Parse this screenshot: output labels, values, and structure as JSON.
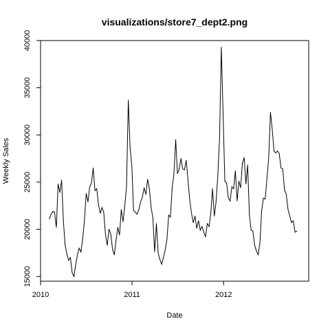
{
  "chart_data": {
    "type": "line",
    "title": "visualizations/store7_dept2.png",
    "xlabel": "Date",
    "ylabel": "Weekly Sales",
    "xlim": [
      2010.0,
      2012.93
    ],
    "ylim": [
      14500,
      40000
    ],
    "x_ticks": [
      2010,
      2011,
      2012
    ],
    "y_ticks": [
      15000,
      20000,
      25000,
      30000,
      35000,
      40000
    ],
    "grid": false,
    "color": "#000000",
    "series": [
      {
        "x": [
          2010.0959,
          2010.1151,
          2010.1342,
          2010.1534,
          2010.1726,
          2010.1918,
          2010.211,
          2010.2301,
          2010.2493,
          2010.2685,
          2010.2877,
          2010.3068,
          2010.326,
          2010.3452,
          2010.3644,
          2010.3836,
          2010.4027,
          2010.4219,
          2010.4411,
          2010.4603,
          2010.4795,
          2010.4986,
          2010.5178,
          2010.537,
          2010.5562,
          2010.5753,
          2010.5945,
          2010.6137,
          2010.6329,
          2010.6521,
          2010.6712,
          2010.6904,
          2010.7096,
          2010.7288,
          2010.7479,
          2010.7671,
          2010.7863,
          2010.8055,
          2010.8247,
          2010.8438,
          2010.863,
          2010.8822,
          2010.9014,
          2010.9205,
          2010.9397,
          2010.9589,
          2010.9781,
          2010.9973,
          2011.0164,
          2011.0356,
          2011.0548,
          2011.074,
          2011.0932,
          2011.1123,
          2011.1315,
          2011.1507,
          2011.1699,
          2011.189,
          2011.2082,
          2011.2274,
          2011.2466,
          2011.2658,
          2011.2849,
          2011.3041,
          2011.3233,
          2011.3425,
          2011.3616,
          2011.3808,
          2011.4,
          2011.4192,
          2011.4384,
          2011.4575,
          2011.4767,
          2011.4959,
          2011.5151,
          2011.5342,
          2011.5534,
          2011.5726,
          2011.5918,
          2011.611,
          2011.6301,
          2011.6493,
          2011.6685,
          2011.6877,
          2011.7068,
          2011.726,
          2011.7452,
          2011.7644,
          2011.7836,
          2011.8027,
          2011.8219,
          2011.8411,
          2011.8603,
          2011.8795,
          2011.8986,
          2011.9178,
          2011.937,
          2011.9562,
          2011.9753,
          2011.9945,
          2012.0137,
          2012.0329,
          2012.0521,
          2012.0712,
          2012.0904,
          2012.1096,
          2012.1288,
          2012.1479,
          2012.1671,
          2012.1863,
          2012.2055,
          2012.2247,
          2012.2438,
          2012.263,
          2012.2822,
          2012.3014,
          2012.3205,
          2012.3397,
          2012.3589,
          2012.3781,
          2012.3973,
          2012.4164,
          2012.4356,
          2012.4548,
          2012.474,
          2012.4932,
          2012.5123,
          2012.5315,
          2012.5507,
          2012.5699,
          2012.589,
          2012.6082,
          2012.6274,
          2012.6466,
          2012.6658,
          2012.6849,
          2012.7041,
          2012.7233,
          2012.7425,
          2012.7616,
          2012.7808,
          2012.8
        ],
        "y": [
          21100,
          21600,
          21900,
          21800,
          20200,
          24800,
          23900,
          25200,
          20900,
          18300,
          17400,
          16700,
          17000,
          15400,
          15000,
          16200,
          17300,
          18000,
          17600,
          19000,
          20900,
          23800,
          22900,
          24500,
          24900,
          26500,
          24100,
          24300,
          22600,
          21700,
          22300,
          21800,
          19400,
          18300,
          20000,
          19500,
          17900,
          17300,
          18800,
          20200,
          19400,
          22100,
          20800,
          22500,
          24600,
          33700,
          28700,
          26700,
          22000,
          21800,
          21600,
          22100,
          22900,
          23400,
          24400,
          23700,
          25300,
          24300,
          22300,
          21200,
          17600,
          20600,
          17500,
          16800,
          16300,
          17000,
          17800,
          18900,
          21500,
          21300,
          24400,
          25900,
          29500,
          25900,
          26400,
          27500,
          26400,
          26300,
          27300,
          25200,
          23100,
          21700,
          20700,
          21400,
          20100,
          20900,
          19900,
          20300,
          19700,
          19200,
          20600,
          20300,
          21700,
          24300,
          21400,
          22900,
          25700,
          29700,
          39300,
          32300,
          25100,
          24900,
          23300,
          23000,
          24500,
          24300,
          26200,
          23000,
          25100,
          24400,
          27000,
          27600,
          24800,
          26800,
          21500,
          19900,
          19800,
          18300,
          17700,
          17300,
          18600,
          22000,
          23300,
          23200,
          25400,
          27600,
          32400,
          30600,
          28300,
          28100,
          28300,
          28000,
          26500,
          26400,
          24200,
          23700,
          22100,
          21400,
          20700,
          20900,
          19700,
          19800
        ]
      }
    ]
  }
}
